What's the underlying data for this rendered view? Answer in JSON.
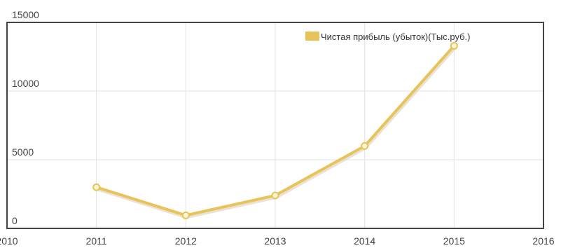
{
  "chart_data": {
    "type": "line",
    "title": "",
    "xlabel": "",
    "ylabel": "",
    "xlim": [
      2010,
      2016
    ],
    "ylim": [
      0,
      15000
    ],
    "x_ticks": [
      "2010",
      "2011",
      "2012",
      "2013",
      "2014",
      "2015",
      "2016"
    ],
    "y_ticks": [
      "0",
      "5000",
      "10000",
      "15000"
    ],
    "grid": true,
    "legend": "top-right",
    "series": [
      {
        "name": "Чистая прибыль (убыток)(Тыс.руб.)",
        "color": "#e8c35a",
        "x": [
          2011,
          2012,
          2013,
          2014,
          2015
        ],
        "y": [
          3000,
          950,
          2400,
          6000,
          13300
        ]
      }
    ]
  }
}
